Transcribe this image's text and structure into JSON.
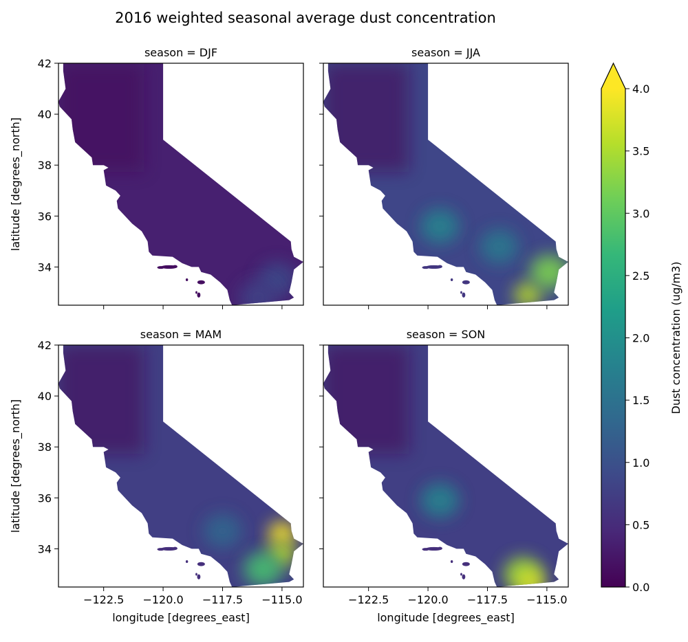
{
  "figure": {
    "title": "2016 weighted seasonal average dust concentration"
  },
  "chart_data": {
    "type": "heatmap",
    "title": "2016 weighted seasonal average dust concentration",
    "xlabel": "longitude [degrees_east]",
    "ylabel": "latitude [degrees_north]",
    "xlim": [
      -124.4,
      -114.1
    ],
    "ylim": [
      32.5,
      42.0
    ],
    "xticks": [
      -122.5,
      -120.0,
      -117.5,
      -115.0
    ],
    "xtick_labels": [
      "−122.5",
      "−120.0",
      "−117.5",
      "−115.0"
    ],
    "yticks": [
      34,
      36,
      38,
      40,
      42
    ],
    "ytick_labels": [
      "34",
      "36",
      "38",
      "40",
      "42"
    ],
    "colormap": "viridis",
    "colorbar": {
      "label": "Dust concentration (ug/m3)",
      "range": [
        0.0,
        4.0
      ],
      "extend": "max",
      "ticks": [
        "0.0",
        "0.5",
        "1.0",
        "1.5",
        "2.0",
        "2.5",
        "3.0",
        "3.5",
        "4.0"
      ]
    },
    "panels": [
      {
        "title": "season = DJF",
        "base": 0.35,
        "hotspots": [
          {
            "lon": -115.2,
            "lat": 33.5,
            "value": 0.9
          },
          {
            "lon": -116.0,
            "lat": 32.8,
            "value": 0.8
          }
        ]
      },
      {
        "title": "season = JJA",
        "base": 0.85,
        "hotspots": [
          {
            "lon": -119.5,
            "lat": 35.6,
            "value": 1.8
          },
          {
            "lon": -117.0,
            "lat": 34.8,
            "value": 1.6
          },
          {
            "lon": -115.8,
            "lat": 32.9,
            "value": 3.6
          },
          {
            "lon": -114.9,
            "lat": 33.8,
            "value": 3.2
          }
        ]
      },
      {
        "title": "season = MAM",
        "base": 0.75,
        "hotspots": [
          {
            "lon": -115.0,
            "lat": 34.6,
            "value": 4.0
          },
          {
            "lon": -115.0,
            "lat": 33.8,
            "value": 3.6
          },
          {
            "lon": -115.8,
            "lat": 33.2,
            "value": 2.8
          },
          {
            "lon": -117.5,
            "lat": 34.7,
            "value": 1.3
          }
        ]
      },
      {
        "title": "season = SON",
        "base": 0.75,
        "hotspots": [
          {
            "lon": -119.5,
            "lat": 35.9,
            "value": 1.8
          },
          {
            "lon": -116.0,
            "lat": 33.0,
            "value": 3.4
          },
          {
            "lon": -115.7,
            "lat": 32.7,
            "value": 3.8
          }
        ]
      }
    ]
  }
}
